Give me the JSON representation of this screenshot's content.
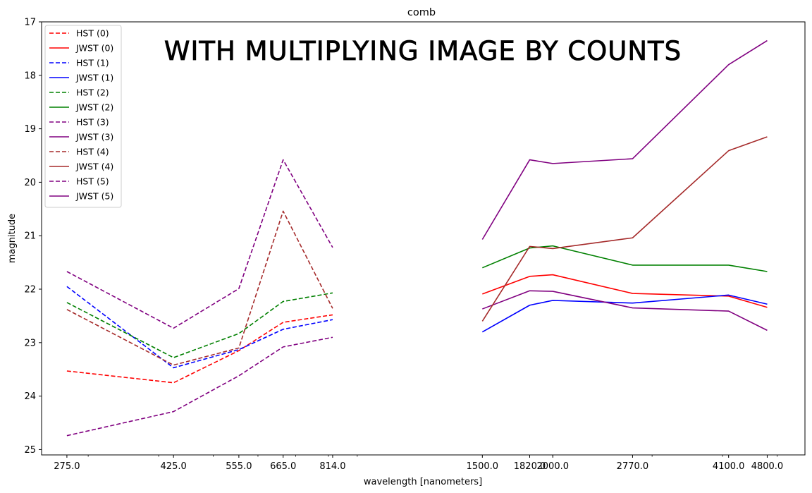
{
  "chart_data": {
    "type": "line",
    "title": "comb",
    "annotation": "WITH MULTIPLYING IMAGE BY COUNTS",
    "xlabel": "wavelength [nanometers]",
    "ylabel": "magnitude",
    "x_scale": "log",
    "y_inverted": true,
    "ylim": [
      25.1,
      17
    ],
    "xlim": [
      248,
      5600
    ],
    "x_ticks": [
      275.0,
      425.0,
      555.0,
      665.0,
      814.0,
      1500.0,
      1820.0,
      2000.0,
      2770.0,
      4100.0,
      4800.0
    ],
    "x_tick_labels": [
      "275.0",
      "425.0",
      "555.0",
      "665.0",
      "814.0",
      "1500.0",
      "1820.0",
      "2000.0",
      "2770.0",
      "4100.0",
      "4800.0"
    ],
    "y_ticks": [
      17,
      18,
      19,
      20,
      21,
      22,
      23,
      24,
      25
    ],
    "y_tick_labels": [
      "17",
      "18",
      "19",
      "20",
      "21",
      "22",
      "23",
      "24",
      "25"
    ],
    "grid": false,
    "legend_position": "upper-left",
    "series": [
      {
        "name": "HST (0)",
        "color": "#ff0000",
        "style": "dashed",
        "x": [
          275,
          425,
          555,
          665,
          814
        ],
        "y": [
          23.53,
          23.75,
          23.15,
          22.62,
          22.48
        ]
      },
      {
        "name": "JWST (0)",
        "color": "#ff0000",
        "style": "solid",
        "x": [
          1500,
          1820,
          2000,
          2770,
          4100,
          4800
        ],
        "y": [
          22.09,
          21.76,
          21.73,
          22.08,
          22.13,
          22.34
        ]
      },
      {
        "name": "HST (1)",
        "color": "#0000ff",
        "style": "dashed",
        "x": [
          275,
          425,
          555,
          665,
          814
        ],
        "y": [
          21.95,
          23.47,
          23.13,
          22.75,
          22.57
        ]
      },
      {
        "name": "JWST (1)",
        "color": "#0000ff",
        "style": "solid",
        "x": [
          1500,
          1820,
          2000,
          2770,
          4100,
          4800
        ],
        "y": [
          22.8,
          22.3,
          22.21,
          22.26,
          22.11,
          22.28
        ]
      },
      {
        "name": "HST (2)",
        "color": "#008000",
        "style": "dashed",
        "x": [
          275,
          425,
          555,
          665,
          814
        ],
        "y": [
          22.25,
          23.28,
          22.83,
          22.23,
          22.07
        ]
      },
      {
        "name": "JWST (2)",
        "color": "#008000",
        "style": "solid",
        "x": [
          1500,
          1820,
          2000,
          2770,
          4100,
          4800
        ],
        "y": [
          21.6,
          21.23,
          21.19,
          21.55,
          21.55,
          21.67
        ]
      },
      {
        "name": "HST (3)",
        "color": "#800080",
        "style": "dashed",
        "x": [
          275,
          425,
          555,
          665,
          814
        ],
        "y": [
          24.74,
          24.29,
          23.62,
          23.08,
          22.9
        ]
      },
      {
        "name": "JWST (3)",
        "color": "#800080",
        "style": "solid",
        "x": [
          1500,
          1820,
          2000,
          2770,
          4100,
          4800
        ],
        "y": [
          22.37,
          22.03,
          22.04,
          22.35,
          22.41,
          22.77
        ]
      },
      {
        "name": "HST (4)",
        "color": "#a52a2a",
        "style": "dashed",
        "x": [
          275,
          425,
          555,
          665,
          814
        ],
        "y": [
          22.38,
          23.42,
          23.1,
          20.54,
          22.36
        ]
      },
      {
        "name": "JWST (4)",
        "color": "#a52a2a",
        "style": "solid",
        "x": [
          1500,
          1820,
          2000,
          2770,
          4100,
          4800
        ],
        "y": [
          22.6,
          21.2,
          21.24,
          21.04,
          19.41,
          19.15
        ]
      },
      {
        "name": "HST (5)",
        "color": "#800080",
        "style": "dashed",
        "x": [
          275,
          425,
          555,
          665,
          814
        ],
        "y": [
          21.67,
          22.73,
          21.99,
          19.58,
          21.22
        ]
      },
      {
        "name": "JWST (5)",
        "color": "#800080",
        "style": "solid",
        "x": [
          1500,
          1820,
          2000,
          2770,
          4100,
          4800
        ],
        "y": [
          21.07,
          19.58,
          19.65,
          19.56,
          17.8,
          17.35
        ]
      }
    ]
  }
}
